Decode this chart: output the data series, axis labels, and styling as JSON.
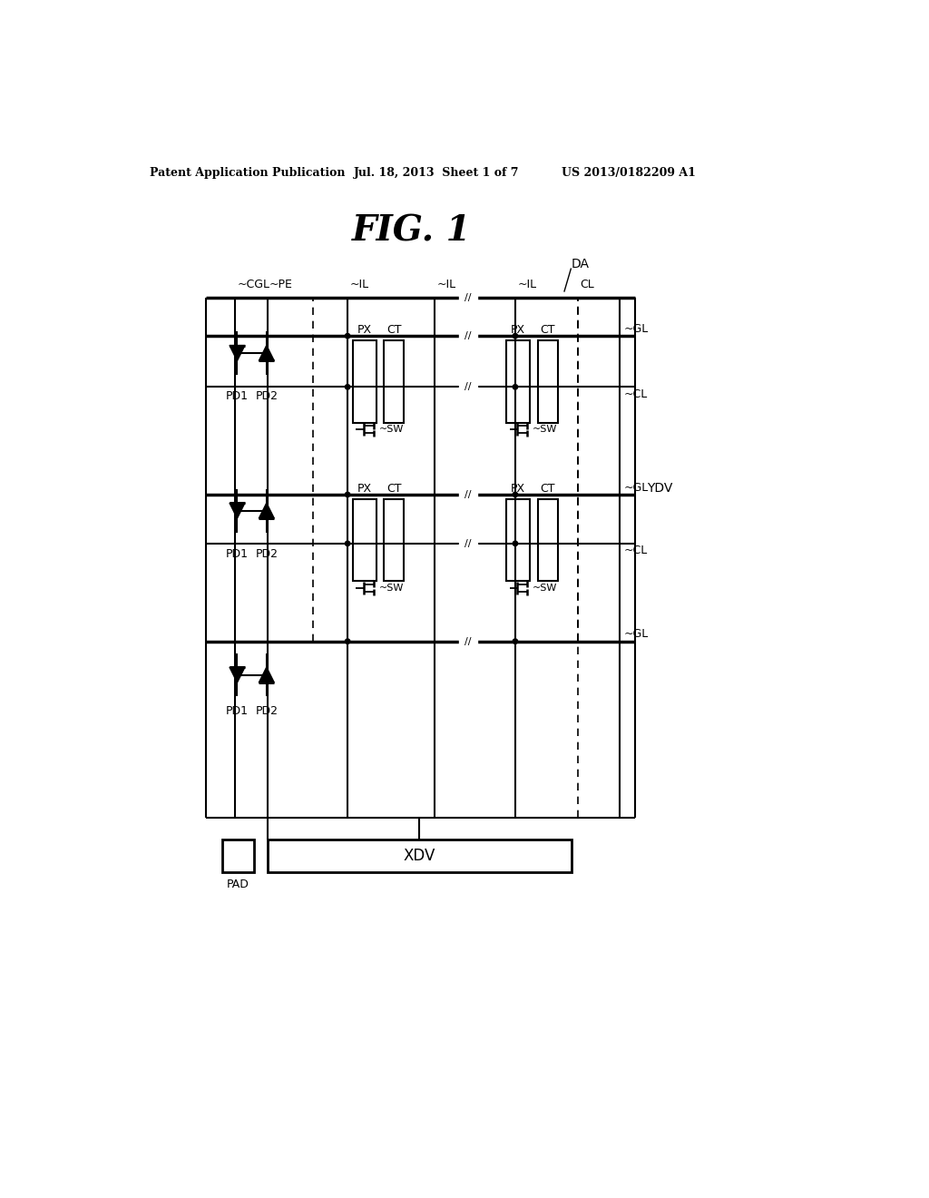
{
  "bg_color": "#ffffff",
  "header_left": "Patent Application Publication",
  "header_mid": "Jul. 18, 2013  Sheet 1 of 7",
  "header_right": "US 2013/0182209 A1",
  "fig_title": "FIG. 1",
  "label_DA": "DA",
  "label_CGL": "CGL",
  "label_PE": "PE",
  "label_IL": "IL",
  "label_CL": "CL",
  "label_GL": "GL",
  "label_PX": "PX",
  "label_CT": "CT",
  "label_SW": "SW",
  "label_PD1": "PD1",
  "label_PD2": "PD2",
  "label_YDV": "YDV",
  "label_XDV": "XDV",
  "label_PAD": "PAD",
  "line_color": "#000000",
  "header_fontsize": 9,
  "title_fontsize": 28,
  "label_fontsize": 10,
  "small_fontsize": 9
}
